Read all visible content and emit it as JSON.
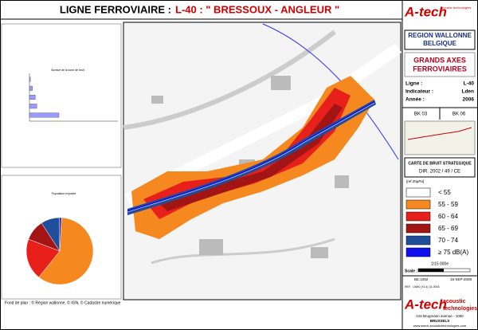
{
  "header": {
    "title_a": "LIGNE FERROVIAIRE :",
    "title_b": "L-40 : \" BRESSOUX - ANGLEUR \""
  },
  "left": {
    "bar_panel": {
      "title": "Surface de la zone de bruit",
      "xlim": [
        0,
        30
      ],
      "values": [
        0.3,
        1,
        2,
        2.5,
        10
      ],
      "color": "#9999ff"
    },
    "pie_panel": {
      "title": "Population exposée",
      "values": [
        60,
        20,
        10,
        9,
        1
      ],
      "colors": [
        "#f5891f",
        "#e8201c",
        "#a31515",
        "#1f4e9a",
        "#1010ee"
      ]
    }
  },
  "footer": {
    "credits": "Fond de plan : © Région wallonne, © IGN, © Cadastre numérique"
  },
  "right": {
    "logo_top": "A-tech",
    "logo_top_sub": "acoustic technologies",
    "region": [
      "REGION WALLONNE",
      "BELGIQUE"
    ],
    "axes": [
      "GRANDS AXES",
      "FERROVIAIRES"
    ],
    "info": [
      [
        "Ligne :",
        "L-40"
      ],
      [
        "Indicateur :",
        "Lden"
      ],
      [
        "Année :",
        "2006"
      ]
    ],
    "bk": [
      "BK 03",
      "BK 06"
    ],
    "carte": "CARTE DE BRUIT STRATEGIQUE",
    "dir": "DIR. 2002 / 49 / CE",
    "ref_unit": "[ref.20µPa]",
    "legend": [
      {
        "label": "< 55",
        "color": "#ffffff"
      },
      {
        "label": "55 - 59",
        "color": "#f5891f"
      },
      {
        "label": "60 - 64",
        "color": "#e8201c"
      },
      {
        "label": "65 - 69",
        "color": "#a31515"
      },
      {
        "label": "70 - 74",
        "color": "#1f4e9a"
      },
      {
        "label": "≥ 75 dB(A)",
        "color": "#1010ee"
      }
    ],
    "scale_ratio": "1/15 000e",
    "scale_label": "Scale :",
    "code": "BE.1092",
    "date": "15-SEP-2008",
    "ref": "REF. : LW40_K0-6_01-0004",
    "logo_bottom": "A-tech",
    "logo_bottom_sub": [
      "acoustic",
      "technologies"
    ],
    "address": [
      "215 Brugmann avenue - 1050",
      "BRUSSELS"
    ],
    "web": "www.atech-acoustictechnologies.com"
  }
}
